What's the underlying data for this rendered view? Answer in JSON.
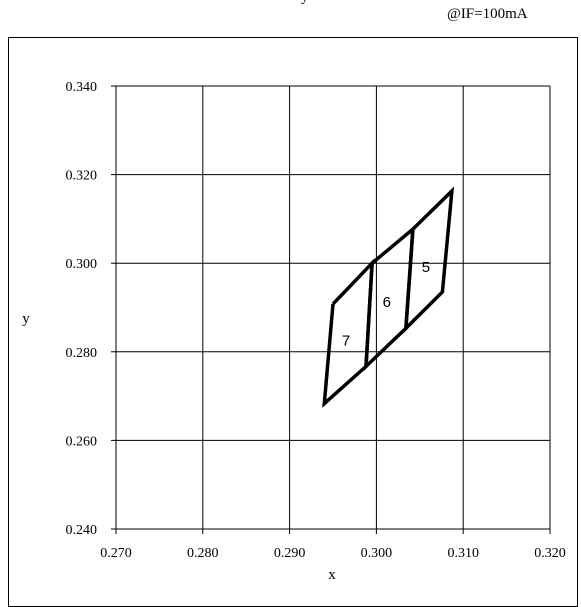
{
  "header": {
    "note": "@IF=100mA",
    "cut_text": "y"
  },
  "chart_data": {
    "type": "line",
    "title": "",
    "xlabel": "x",
    "ylabel": "y",
    "xlim": [
      0.27,
      0.32
    ],
    "ylim": [
      0.24,
      0.34
    ],
    "grid": true,
    "x_ticks": [
      "0.270",
      "0.280",
      "0.290",
      "0.300",
      "0.310",
      "0.320"
    ],
    "y_ticks": [
      "0.340",
      "0.320",
      "0.300",
      "0.280",
      "0.260",
      "0.240"
    ],
    "series": [
      {
        "name": "5",
        "points": [
          [
            0.3042,
            0.3077
          ],
          [
            0.3087,
            0.3163
          ],
          [
            0.3076,
            0.2935
          ],
          [
            0.3034,
            0.2853
          ],
          [
            0.3042,
            0.3077
          ]
        ]
      },
      {
        "name": "6",
        "points": [
          [
            0.2995,
            0.3
          ],
          [
            0.3042,
            0.3077
          ],
          [
            0.3034,
            0.2853
          ],
          [
            0.2988,
            0.2767
          ],
          [
            0.2995,
            0.3
          ]
        ]
      },
      {
        "name": "7",
        "points": [
          [
            0.295,
            0.2908
          ],
          [
            0.2995,
            0.3
          ],
          [
            0.2988,
            0.2767
          ],
          [
            0.294,
            0.2683
          ],
          [
            0.295,
            0.2908
          ]
        ]
      }
    ],
    "bin_labels": [
      {
        "text": "5",
        "x": 0.3057,
        "y": 0.2991
      },
      {
        "text": "6",
        "x": 0.3012,
        "y": 0.2912
      },
      {
        "text": "7",
        "x": 0.2965,
        "y": 0.2826
      }
    ]
  }
}
